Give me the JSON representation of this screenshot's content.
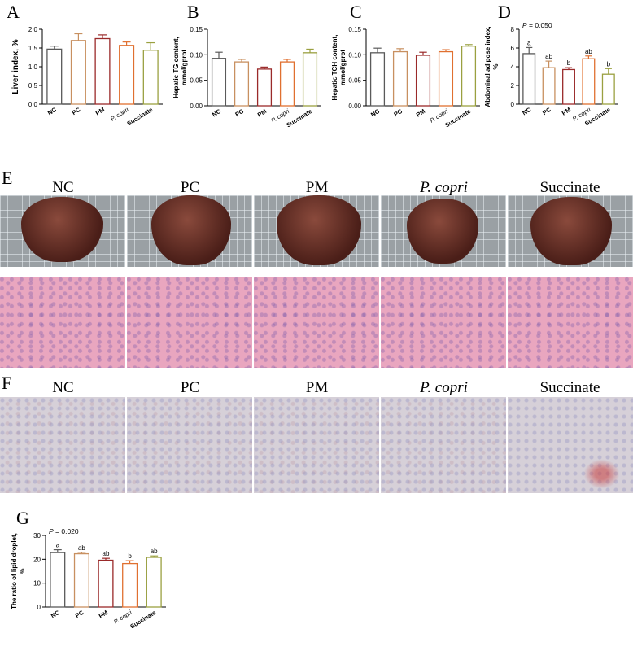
{
  "panels": {
    "A": "A",
    "B": "B",
    "C": "C",
    "D": "D",
    "E": "E",
    "F": "F",
    "G": "G"
  },
  "group_labels": [
    "NC",
    "PC",
    "PM",
    "P. copri",
    "Succinate"
  ],
  "colors": {
    "NC": "#5a5a5a",
    "PC": "#c89060",
    "PM": "#9a2a2a",
    "P. copri": "#e07030",
    "Succinate": "#9aa040"
  },
  "chart_data": [
    {
      "id": "A",
      "type": "bar",
      "categories": [
        "NC",
        "PC",
        "PM",
        "P. copri",
        "Succinate"
      ],
      "values": [
        1.47,
        1.7,
        1.75,
        1.57,
        1.44
      ],
      "errors": [
        0.08,
        0.18,
        0.1,
        0.09,
        0.2
      ],
      "ylabel": "Liver index, %",
      "ylim": [
        0,
        2.0
      ],
      "yticks": [
        "0.0",
        "0.5",
        "1.0",
        "1.5",
        "2.0"
      ],
      "ytick_values": [
        0,
        0.5,
        1.0,
        1.5,
        2.0
      ]
    },
    {
      "id": "B",
      "type": "bar",
      "categories": [
        "NC",
        "PC",
        "PM",
        "P. copri",
        "Succinate"
      ],
      "values": [
        0.093,
        0.086,
        0.072,
        0.086,
        0.104
      ],
      "errors": [
        0.012,
        0.005,
        0.004,
        0.005,
        0.007
      ],
      "ylabel": "Hepatic TG content, mmol/gprot",
      "ylim": [
        0,
        0.15
      ],
      "yticks": [
        "0.00",
        "0.05",
        "0.10",
        "0.15"
      ],
      "ytick_values": [
        0,
        0.05,
        0.1,
        0.15
      ]
    },
    {
      "id": "C",
      "type": "bar",
      "categories": [
        "NC",
        "PC",
        "PM",
        "P. copri",
        "Succinate"
      ],
      "values": [
        0.104,
        0.106,
        0.099,
        0.106,
        0.117
      ],
      "errors": [
        0.009,
        0.006,
        0.006,
        0.004,
        0.003
      ],
      "ylabel": "Hepatic TCH content, mmol/gprot",
      "ylim": [
        0,
        0.15
      ],
      "yticks": [
        "0.00",
        "0.05",
        "0.10",
        "0.15"
      ],
      "ytick_values": [
        0,
        0.05,
        0.1,
        0.15
      ]
    },
    {
      "id": "D",
      "type": "bar",
      "categories": [
        "NC",
        "PC",
        "PM",
        "P. copri",
        "Succinate"
      ],
      "values": [
        5.4,
        3.9,
        3.7,
        4.85,
        3.2
      ],
      "errors": [
        0.65,
        0.7,
        0.2,
        0.3,
        0.6
      ],
      "letters": [
        "a",
        "ab",
        "b",
        "ab",
        "b"
      ],
      "annotation": "P = 0.050",
      "ylabel": "Abdominal adipose index, %",
      "ylim": [
        0,
        8
      ],
      "yticks": [
        "0",
        "2",
        "4",
        "6",
        "8"
      ],
      "ytick_values": [
        0,
        2,
        4,
        6,
        8
      ]
    },
    {
      "id": "G",
      "type": "bar",
      "categories": [
        "NC",
        "PC",
        "PM",
        "P. copri",
        "Succinate"
      ],
      "values": [
        22.8,
        22.3,
        19.6,
        18.2,
        20.8
      ],
      "errors": [
        1.2,
        0.6,
        0.8,
        1.2,
        0.6
      ],
      "letters": [
        "a",
        "ab",
        "ab",
        "b",
        "ab"
      ],
      "annotation": "P = 0.020",
      "ylabel": "The ratio of lipid droplet, %",
      "ylim": [
        0,
        30
      ],
      "yticks": [
        "0",
        "10",
        "20",
        "30"
      ],
      "ytick_values": [
        0,
        10,
        20,
        30
      ]
    }
  ]
}
